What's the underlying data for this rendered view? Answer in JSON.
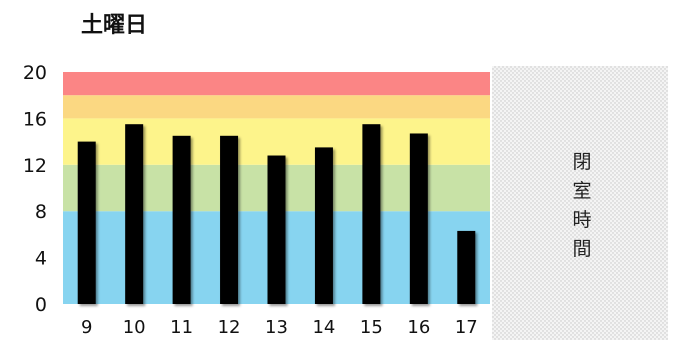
{
  "chart_data": {
    "type": "bar",
    "title": "土曜日",
    "xlabel": "",
    "ylabel": "",
    "categories": [
      "9",
      "10",
      "11",
      "12",
      "13",
      "14",
      "15",
      "16",
      "17"
    ],
    "values": [
      14,
      15.5,
      14.5,
      14.5,
      12.8,
      13.5,
      15.5,
      14.7,
      6.3
    ],
    "ylim": [
      0,
      20
    ],
    "yticks": [
      "0",
      "4",
      "8",
      "12",
      "16",
      "20"
    ],
    "grid": false,
    "bar_color": "#000000",
    "bands": [
      {
        "from": 0,
        "to": 8,
        "color": "#87d4f0"
      },
      {
        "from": 8,
        "to": 12,
        "color": "#c8e2a6"
      },
      {
        "from": 12,
        "to": 16,
        "color": "#fdf48b"
      },
      {
        "from": 16,
        "to": 18,
        "color": "#fbd882"
      },
      {
        "from": 18,
        "to": 20,
        "color": "#fb8585"
      }
    ],
    "closed_area": {
      "label": "閉室時間",
      "color": "#e8e8e8"
    }
  }
}
